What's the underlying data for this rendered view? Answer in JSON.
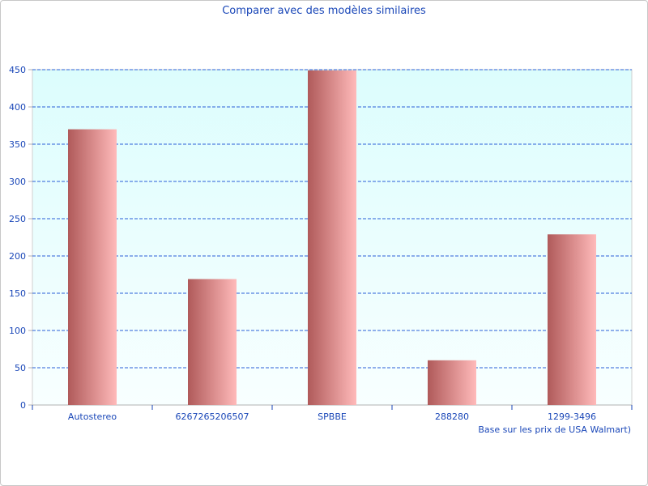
{
  "chart_data": {
    "type": "bar",
    "title": "Comparer avec des modèles similaires",
    "note": "Base sur les prix de USA Walmart)",
    "categories": [
      "Autostereo",
      "6267265206507",
      "SPBBE",
      "288280",
      "1299-3496"
    ],
    "values": [
      370,
      169,
      449,
      60,
      229
    ],
    "ylim": [
      0,
      450
    ],
    "yticks": [
      0,
      50,
      100,
      150,
      200,
      250,
      300,
      350,
      400,
      450
    ],
    "grid": true,
    "legend": "none",
    "colors": {
      "bar_dark": "#b05a5a",
      "bar_light": "#ffbaba",
      "grid": "#2a5fd8",
      "text": "#1a47b8",
      "plot_bg_top": "#dcfdfd",
      "plot_bg_bottom": "#f8ffff"
    }
  }
}
